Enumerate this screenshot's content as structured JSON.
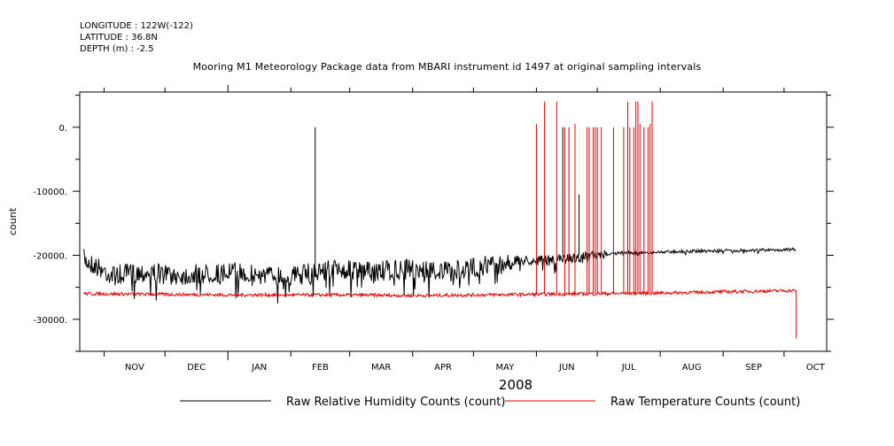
{
  "header": {
    "longitude": "LONGITUDE : 122W(-122)",
    "latitude": "LATITUDE : 36.8N",
    "depth": "DEPTH (m) : -2.5",
    "title": "Mooring M1 Meteorology Package data from MBARI instrument id 1497 at original sampling intervals"
  },
  "chart_data": {
    "type": "line",
    "title": "Mooring M1 Meteorology Package data from MBARI instrument id 1497 at original sampling intervals",
    "xlabel": "2008",
    "ylabel": "count",
    "x_tick_labels": [
      "NOV",
      "DEC",
      "JAN",
      "FEB",
      "MAR",
      "APR",
      "MAY",
      "JUN",
      "JUL",
      "AUG",
      "SEP",
      "OCT"
    ],
    "y_tick_values": [
      0,
      -10000,
      -20000,
      -30000
    ],
    "y_tick_labels": [
      "0.",
      "-10000.",
      "-20000.",
      "-30000."
    ],
    "xlim": [
      "2007-10-20",
      "2008-10-22"
    ],
    "ylim": [
      -35000,
      5500
    ],
    "grid": false,
    "legend_position": "bottom",
    "series": [
      {
        "name": "Raw Relative Humidity Counts (count)",
        "color": "#000000",
        "baseline": [
          [
            "2007-10-22",
            -20000
          ],
          [
            "2007-11-05",
            -22500
          ],
          [
            "2007-11-20",
            -22000
          ],
          [
            "2007-12-10",
            -22500
          ],
          [
            "2008-01-01",
            -22000
          ],
          [
            "2008-01-20",
            -22500
          ],
          [
            "2008-02-05",
            -22500
          ],
          [
            "2008-02-20",
            -21500
          ],
          [
            "2008-03-10",
            -22000
          ],
          [
            "2008-04-01",
            -21500
          ],
          [
            "2008-04-20",
            -22000
          ],
          [
            "2008-05-05",
            -21000
          ],
          [
            "2008-05-25",
            -20500
          ],
          [
            "2008-06-10",
            -20500
          ],
          [
            "2008-06-20",
            -20000
          ],
          [
            "2008-07-01",
            -19800
          ],
          [
            "2008-07-15",
            -19500
          ],
          [
            "2008-07-25",
            -19500
          ],
          [
            "2008-08-10",
            -19300
          ],
          [
            "2008-09-01",
            -19200
          ],
          [
            "2008-09-20",
            -19100
          ],
          [
            "2008-10-07",
            -19000
          ]
        ],
        "spikes": [
          [
            "2008-02-13",
            0
          ],
          [
            "2008-06-14",
            0
          ],
          [
            "2008-06-22",
            -10500
          ]
        ]
      },
      {
        "name": "Raw Temperature Counts (count)",
        "color": "#e00000",
        "baseline": [
          [
            "2007-10-22",
            -26000
          ],
          [
            "2007-12-01",
            -26100
          ],
          [
            "2008-01-01",
            -26200
          ],
          [
            "2008-02-01",
            -26200
          ],
          [
            "2008-03-01",
            -26200
          ],
          [
            "2008-04-01",
            -26300
          ],
          [
            "2008-05-01",
            -26200
          ],
          [
            "2008-06-01",
            -26100
          ],
          [
            "2008-07-01",
            -26000
          ],
          [
            "2008-08-01",
            -25900
          ],
          [
            "2008-09-01",
            -25700
          ],
          [
            "2008-10-07",
            -25500
          ]
        ],
        "spikes": [
          [
            "2008-06-01",
            500
          ],
          [
            "2008-06-05",
            4000
          ],
          [
            "2008-06-11",
            4000
          ],
          [
            "2008-06-15",
            0
          ],
          [
            "2008-06-17",
            0
          ],
          [
            "2008-06-20",
            500
          ],
          [
            "2008-06-26",
            0
          ],
          [
            "2008-06-27",
            0
          ],
          [
            "2008-06-29",
            0
          ],
          [
            "2008-06-30",
            0
          ],
          [
            "2008-07-01",
            0
          ],
          [
            "2008-07-03",
            0
          ],
          [
            "2008-07-09",
            0
          ],
          [
            "2008-07-14",
            0
          ],
          [
            "2008-07-16",
            4000
          ],
          [
            "2008-07-17",
            0
          ],
          [
            "2008-07-19",
            0
          ],
          [
            "2008-07-20",
            4000
          ],
          [
            "2008-07-21",
            4000
          ],
          [
            "2008-07-22",
            500
          ],
          [
            "2008-07-24",
            0
          ],
          [
            "2008-07-26",
            0
          ],
          [
            "2008-07-27",
            500
          ],
          [
            "2008-07-28",
            4000
          ]
        ],
        "end_drop": [
          "2008-10-07",
          -33000
        ]
      }
    ]
  }
}
